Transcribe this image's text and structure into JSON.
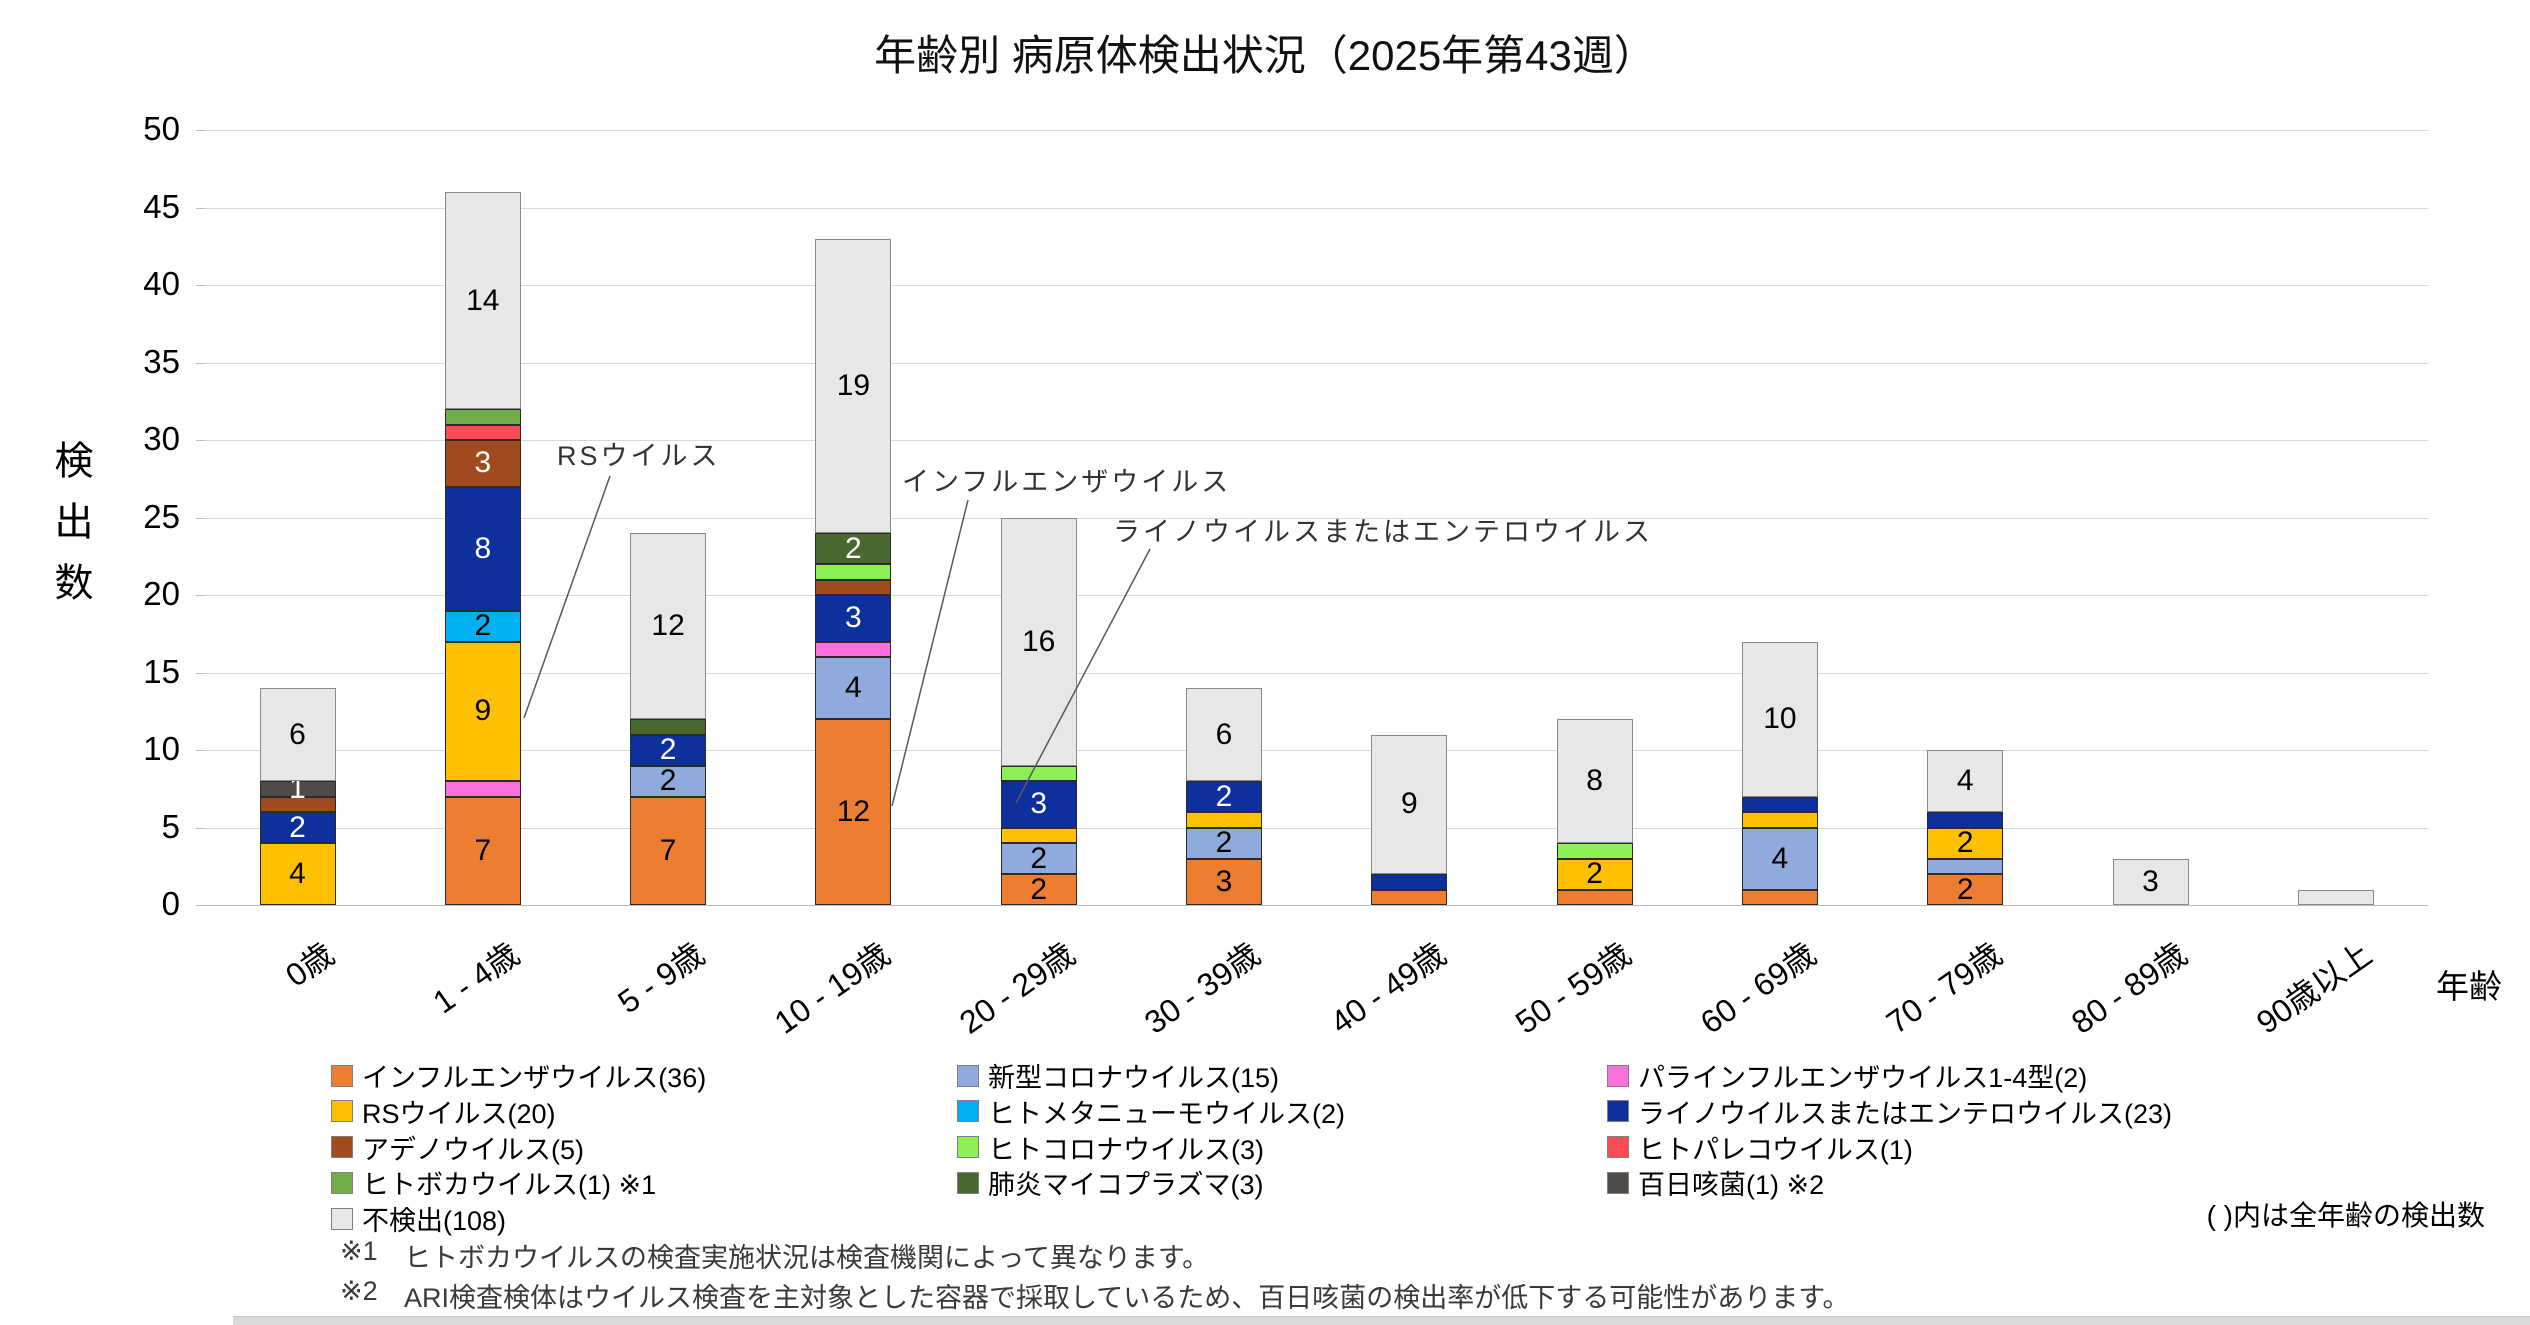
{
  "title": "年齢別 病原体検出状況（2025年第43週）",
  "y_axis": {
    "title": "検出数",
    "ticks": [
      0,
      5,
      10,
      15,
      20,
      25,
      30,
      35,
      40,
      45,
      50
    ]
  },
  "x_axis": {
    "title": "年齢"
  },
  "legend_note": "( )内は全年齢の検出数",
  "footnotes": [
    {
      "marker": "※1",
      "text": "ヒトボカウイルスの検査実施状況は検査機関によって異なります。"
    },
    {
      "marker": "※2",
      "text": "ARI検査検体はウイルス検査を主対象とした容器で採取しているため、百日咳菌の検出率が低下する可能性があります。"
    }
  ],
  "annotations": [
    {
      "id": "rs",
      "text": "RSウイルス"
    },
    {
      "id": "flu",
      "text": "インフルエンザウイルス"
    },
    {
      "id": "rhino",
      "text": "ライノウイルスまたはエンテロウイルス"
    }
  ],
  "chart_data": {
    "type": "bar",
    "stacked": true,
    "title": "年齢別 病原体検出状況（2025年第43週）",
    "xlabel": "年齢",
    "ylabel": "検出数",
    "ylim": [
      0,
      50
    ],
    "grid": true,
    "legend_position": "bottom",
    "categories": [
      "0歳",
      "1 - 4歳",
      "5 - 9歳",
      "10 - 19歳",
      "20 - 29歳",
      "30 - 39歳",
      "40 - 49歳",
      "50 - 59歳",
      "60 - 69歳",
      "70 - 79歳",
      "80 - 89歳",
      "90歳以上"
    ],
    "series": [
      {
        "name": "インフルエンザウイルス",
        "legend_label": "インフルエンザウイルス(36)",
        "total": 36,
        "color": "#ED7D31",
        "label_color": "#000000",
        "values": [
          0,
          7,
          7,
          12,
          2,
          3,
          1,
          1,
          1,
          2,
          0,
          0
        ],
        "labels": [
          "",
          "7",
          "7",
          "12",
          "2",
          "3",
          "",
          "",
          "",
          "2",
          "",
          ""
        ]
      },
      {
        "name": "新型コロナウイルス",
        "legend_label": "新型コロナウイルス(15)",
        "total": 15,
        "color": "#8FAADC",
        "label_color": "#000000",
        "values": [
          0,
          0,
          2,
          4,
          2,
          2,
          0,
          0,
          4,
          1,
          0,
          0
        ],
        "labels": [
          "",
          "",
          "2",
          "4",
          "2",
          "2",
          "",
          "",
          "4",
          "",
          "",
          ""
        ]
      },
      {
        "name": "パラインフルエンザウイルス1-4型",
        "legend_label": "パラインフルエンザウイルス1-4型(2)",
        "total": 2,
        "color": "#FA70DC",
        "label_color": "#000000",
        "values": [
          0,
          1,
          0,
          1,
          0,
          0,
          0,
          0,
          0,
          0,
          0,
          0
        ],
        "labels": [
          "",
          "",
          "",
          "",
          "",
          "",
          "",
          "",
          "",
          "",
          "",
          ""
        ]
      },
      {
        "name": "RSウイルス",
        "legend_label": "RSウイルス(20)",
        "total": 20,
        "color": "#FFC000",
        "label_color": "#000000",
        "values": [
          4,
          9,
          0,
          0,
          1,
          1,
          0,
          2,
          1,
          2,
          0,
          0
        ],
        "labels": [
          "4",
          "9",
          "",
          "",
          "",
          "",
          "",
          "2",
          "",
          "2",
          "",
          ""
        ]
      },
      {
        "name": "ヒトメタニューモウイルス",
        "legend_label": "ヒトメタニューモウイルス(2)",
        "total": 2,
        "color": "#00B0F0",
        "label_color": "#000000",
        "values": [
          0,
          2,
          0,
          0,
          0,
          0,
          0,
          0,
          0,
          0,
          0,
          0
        ],
        "labels": [
          "",
          "2",
          "",
          "",
          "",
          "",
          "",
          "",
          "",
          "",
          "",
          ""
        ]
      },
      {
        "name": "ライノウイルスまたはエンテロウイルス",
        "legend_label": "ライノウイルスまたはエンテロウイルス(23)",
        "total": 23,
        "color": "#0D309C",
        "label_color": "#ffffff",
        "values": [
          2,
          8,
          2,
          3,
          3,
          2,
          1,
          0,
          1,
          1,
          0,
          0
        ],
        "labels": [
          "2",
          "8",
          "2",
          "3",
          "3",
          "2",
          "",
          "",
          "",
          "",
          "",
          ""
        ]
      },
      {
        "name": "アデノウイルス",
        "legend_label": "アデノウイルス(5)",
        "total": 5,
        "color": "#A04A1E",
        "label_color": "#ffffff",
        "values": [
          1,
          3,
          0,
          1,
          0,
          0,
          0,
          0,
          0,
          0,
          0,
          0
        ],
        "labels": [
          "",
          "3",
          "",
          "",
          "",
          "",
          "",
          "",
          "",
          "",
          "",
          ""
        ]
      },
      {
        "name": "ヒトコロナウイルス",
        "legend_label": "ヒトコロナウイルス(3)",
        "total": 3,
        "color": "#8CEF54",
        "label_color": "#000000",
        "values": [
          0,
          0,
          0,
          1,
          1,
          0,
          0,
          1,
          0,
          0,
          0,
          0
        ],
        "labels": [
          "",
          "",
          "",
          "",
          "",
          "",
          "",
          "",
          "",
          "",
          "",
          ""
        ]
      },
      {
        "name": "ヒトパレコウイルス",
        "legend_label": "ヒトパレコウイルス(1)",
        "total": 1,
        "color": "#FB4B54",
        "label_color": "#000000",
        "values": [
          0,
          1,
          0,
          0,
          0,
          0,
          0,
          0,
          0,
          0,
          0,
          0
        ],
        "labels": [
          "",
          "",
          "",
          "",
          "",
          "",
          "",
          "",
          "",
          "",
          "",
          ""
        ]
      },
      {
        "name": "ヒトボカウイルス",
        "legend_label": "ヒトボカウイルス(1) ※1",
        "total": 1,
        "color": "#70AD47",
        "label_color": "#000000",
        "values": [
          0,
          1,
          0,
          0,
          0,
          0,
          0,
          0,
          0,
          0,
          0,
          0
        ],
        "labels": [
          "",
          "",
          "",
          "",
          "",
          "",
          "",
          "",
          "",
          "",
          "",
          ""
        ]
      },
      {
        "name": "肺炎マイコプラズマ",
        "legend_label": "肺炎マイコプラズマ(3)",
        "total": 3,
        "color": "#4A672E",
        "label_color": "#ffffff",
        "values": [
          0,
          0,
          1,
          2,
          0,
          0,
          0,
          0,
          0,
          0,
          0,
          0
        ],
        "labels": [
          "",
          "",
          "",
          "2",
          "",
          "",
          "",
          "",
          "",
          "",
          "",
          ""
        ]
      },
      {
        "name": "百日咳菌",
        "legend_label": "百日咳菌(1) ※2",
        "total": 1,
        "color": "#4F4B49",
        "label_color": "#ffffff",
        "values": [
          1,
          0,
          0,
          0,
          0,
          0,
          0,
          0,
          0,
          0,
          0,
          0
        ],
        "labels": [
          "1",
          "",
          "",
          "",
          "",
          "",
          "",
          "",
          "",
          "",
          "",
          ""
        ]
      },
      {
        "name": "不検出",
        "legend_label": "不検出(108)",
        "total": 108,
        "color": "#E8E7E7",
        "label_color": "#000000",
        "values": [
          6,
          14,
          12,
          19,
          16,
          6,
          9,
          8,
          10,
          4,
          3,
          1
        ],
        "labels": [
          "6",
          "14",
          "12",
          "19",
          "16",
          "6",
          "9",
          "8",
          "10",
          "4",
          "3",
          ""
        ]
      }
    ]
  }
}
